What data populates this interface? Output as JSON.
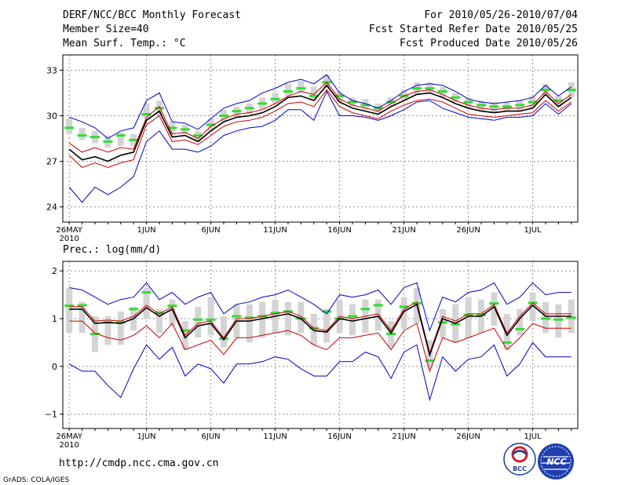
{
  "header": {
    "title": "DERF/NCC/BCC Monthly Forecast",
    "member_size": "Member Size=40",
    "variable": "Mean Surf. Temp.: °C",
    "forecast_period": "For 2010/05/26-2010/07/04",
    "started_date": "Fcst Started Refer Date 2010/05/25",
    "produced_date": "Fcst Produced Date 2010/05/26"
  },
  "footer": {
    "url": "http://cmdp.ncc.cma.gov.cn",
    "grads_credit": "GrADS: COLA/IGES",
    "logo_bcc_text": "BCC",
    "logo_ncc_text": "NCC"
  },
  "colors": {
    "envelope": "#0000cc",
    "spread": "#cc0000",
    "mean": "#000000",
    "box": "#d4d4d4",
    "median": "#33dd33",
    "grid": "#909090"
  },
  "chart_data": [
    {
      "type": "line",
      "name": "temperature",
      "title": "Mean Surf. Temp.: °C",
      "ylim": [
        23,
        34
      ],
      "yticks": [
        24,
        27,
        30,
        33
      ],
      "ytick_labels": [
        "24",
        "27",
        "30",
        "33"
      ],
      "x_ticks": [
        {
          "day": 1,
          "label": "26MAY",
          "sub": "2010"
        },
        {
          "day": 7,
          "label": "1JUN"
        },
        {
          "day": 12,
          "label": "6JUN"
        },
        {
          "day": 17,
          "label": "11JUN"
        },
        {
          "day": 22,
          "label": "16JUN"
        },
        {
          "day": 27,
          "label": "21JUN"
        },
        {
          "day": 32,
          "label": "26JUN"
        },
        {
          "day": 37,
          "label": "1JUL"
        }
      ],
      "days": [
        1,
        2,
        3,
        4,
        5,
        6,
        7,
        8,
        9,
        10,
        11,
        12,
        13,
        14,
        15,
        16,
        17,
        18,
        19,
        20,
        21,
        22,
        23,
        24,
        25,
        26,
        27,
        28,
        29,
        30,
        31,
        32,
        33,
        34,
        35,
        36,
        37,
        38,
        39,
        40
      ],
      "series": [
        {
          "name": "max",
          "role": "envelope",
          "values": [
            29.9,
            29.6,
            29.2,
            28.5,
            29.0,
            29.2,
            31.0,
            31.5,
            29.6,
            29.5,
            29.1,
            29.8,
            30.5,
            30.8,
            31.0,
            31.5,
            31.8,
            32.2,
            32.4,
            32.1,
            32.7,
            31.5,
            31.0,
            30.8,
            30.5,
            31.0,
            31.6,
            32.0,
            32.1,
            32.0,
            31.6,
            31.1,
            30.9,
            30.8,
            30.9,
            31.0,
            31.2,
            32.0,
            31.3,
            31.9
          ]
        },
        {
          "name": "plus_one_sd",
          "role": "spread",
          "values": [
            28.2,
            27.6,
            27.9,
            27.6,
            27.9,
            27.8,
            29.9,
            30.6,
            28.8,
            28.9,
            28.5,
            29.3,
            29.8,
            30.1,
            30.2,
            30.4,
            30.8,
            31.3,
            31.6,
            31.4,
            32.2,
            31.1,
            30.7,
            30.5,
            30.3,
            30.8,
            31.3,
            31.6,
            31.7,
            31.4,
            31.0,
            30.7,
            30.5,
            30.4,
            30.5,
            30.5,
            30.7,
            31.6,
            30.8,
            31.4
          ]
        },
        {
          "name": "mean",
          "role": "mean",
          "values": [
            27.8,
            27.1,
            27.3,
            27.0,
            27.4,
            27.6,
            29.7,
            30.3,
            28.6,
            28.7,
            28.3,
            29.0,
            29.6,
            29.9,
            30.0,
            30.2,
            30.6,
            31.2,
            31.3,
            31.0,
            32.0,
            30.9,
            30.5,
            30.3,
            30.1,
            30.6,
            31.0,
            31.4,
            31.5,
            31.2,
            30.8,
            30.5,
            30.3,
            30.2,
            30.3,
            30.3,
            30.5,
            31.4,
            30.6,
            31.2
          ]
        },
        {
          "name": "minus_one_sd",
          "role": "spread",
          "values": [
            27.4,
            26.6,
            26.9,
            26.6,
            26.9,
            27.1,
            29.4,
            30.0,
            28.3,
            28.4,
            28.1,
            28.7,
            29.3,
            29.6,
            29.7,
            29.9,
            30.3,
            30.8,
            30.9,
            30.6,
            31.7,
            30.6,
            30.2,
            30.0,
            29.8,
            30.3,
            30.7,
            31.0,
            31.1,
            30.9,
            30.5,
            30.1,
            30.0,
            29.9,
            30.0,
            30.1,
            30.2,
            31.0,
            30.3,
            30.9
          ]
        },
        {
          "name": "min",
          "role": "envelope",
          "values": [
            25.3,
            24.3,
            25.3,
            24.8,
            25.3,
            26.0,
            28.3,
            29.0,
            27.8,
            27.8,
            27.6,
            28.0,
            28.7,
            29.0,
            29.2,
            29.3,
            29.7,
            30.4,
            30.4,
            29.7,
            31.6,
            30.0,
            30.0,
            29.9,
            29.7,
            30.0,
            30.4,
            30.9,
            31.0,
            30.5,
            30.2,
            29.9,
            29.8,
            29.7,
            29.9,
            29.9,
            30.0,
            30.8,
            30.1,
            30.8
          ]
        }
      ],
      "boxes": [
        [
          28.8,
          29.8
        ],
        [
          28.4,
          29.2
        ],
        [
          28.2,
          29.0
        ],
        [
          27.9,
          28.7
        ],
        [
          28.0,
          28.9
        ],
        [
          28.0,
          28.8
        ],
        [
          29.8,
          30.8
        ],
        [
          30.0,
          31.0
        ],
        [
          28.8,
          29.6
        ],
        [
          28.8,
          29.4
        ],
        [
          28.3,
          29.0
        ],
        [
          29.0,
          29.8
        ],
        [
          29.6,
          30.4
        ],
        [
          29.9,
          30.6
        ],
        [
          30.1,
          30.8
        ],
        [
          30.4,
          31.2
        ],
        [
          30.8,
          31.5
        ],
        [
          31.3,
          32.1
        ],
        [
          31.5,
          32.3
        ],
        [
          31.0,
          31.9
        ],
        [
          31.8,
          32.7
        ],
        [
          30.9,
          31.6
        ],
        [
          30.6,
          31.2
        ],
        [
          30.4,
          31.1
        ],
        [
          30.2,
          30.8
        ],
        [
          30.6,
          31.2
        ],
        [
          31.0,
          31.7
        ],
        [
          31.4,
          32.2
        ],
        [
          31.5,
          32.2
        ],
        [
          31.2,
          31.9
        ],
        [
          30.9,
          31.5
        ],
        [
          30.5,
          31.2
        ],
        [
          30.3,
          31.0
        ],
        [
          30.2,
          30.9
        ],
        [
          30.3,
          30.9
        ],
        [
          30.3,
          31.0
        ],
        [
          30.5,
          31.3
        ],
        [
          31.3,
          32.1
        ],
        [
          30.6,
          31.3
        ],
        [
          31.2,
          32.2
        ]
      ],
      "medians": [
        29.2,
        28.7,
        28.6,
        28.3,
        28.7,
        28.4,
        30.1,
        30.5,
        29.2,
        29.1,
        28.7,
        29.4,
        30.0,
        30.3,
        30.5,
        30.8,
        31.1,
        31.6,
        31.8,
        31.3,
        32.2,
        31.3,
        30.9,
        30.7,
        30.5,
        30.9,
        31.3,
        31.8,
        31.8,
        31.6,
        31.2,
        30.9,
        30.7,
        30.6,
        30.6,
        30.7,
        30.9,
        31.7,
        31.0,
        31.7
      ]
    },
    {
      "type": "line",
      "name": "precipitation",
      "title": "Prec.: log(mm/d)",
      "ylim": [
        -1.3,
        2.2
      ],
      "yticks": [
        -1,
        0,
        1,
        2
      ],
      "ytick_labels": [
        "−1",
        "0",
        "1",
        "2"
      ],
      "x_ticks": [
        {
          "day": 1,
          "label": "26MAY",
          "sub": "2010"
        },
        {
          "day": 7,
          "label": "1JUN"
        },
        {
          "day": 12,
          "label": "6JUN"
        },
        {
          "day": 17,
          "label": "11JUN"
        },
        {
          "day": 22,
          "label": "16JUN"
        },
        {
          "day": 27,
          "label": "21JUN"
        },
        {
          "day": 32,
          "label": "26JUN"
        },
        {
          "day": 37,
          "label": "1JUL"
        }
      ],
      "days": [
        1,
        2,
        3,
        4,
        5,
        6,
        7,
        8,
        9,
        10,
        11,
        12,
        13,
        14,
        15,
        16,
        17,
        18,
        19,
        20,
        21,
        22,
        23,
        24,
        25,
        26,
        27,
        28,
        29,
        30,
        31,
        32,
        33,
        34,
        35,
        36,
        37,
        38,
        39,
        40
      ],
      "series": [
        {
          "name": "max",
          "role": "envelope",
          "values": [
            1.65,
            1.6,
            1.45,
            1.3,
            1.4,
            1.45,
            1.75,
            1.4,
            1.55,
            1.3,
            1.45,
            1.55,
            1.1,
            1.3,
            1.35,
            1.45,
            1.5,
            1.6,
            1.45,
            1.3,
            1.1,
            1.5,
            1.45,
            1.5,
            1.6,
            1.3,
            1.65,
            1.75,
            0.75,
            1.45,
            1.35,
            1.55,
            1.6,
            1.75,
            1.3,
            1.45,
            1.75,
            1.5,
            1.55,
            1.55
          ]
        },
        {
          "name": "plus_one_sd",
          "role": "spread",
          "values": [
            1.25,
            1.25,
            0.95,
            0.97,
            0.95,
            1.05,
            1.28,
            1.1,
            1.25,
            0.65,
            0.9,
            0.95,
            0.6,
            1.0,
            1.0,
            1.05,
            1.1,
            1.15,
            1.05,
            0.8,
            0.75,
            1.05,
            1.0,
            1.05,
            1.1,
            0.75,
            1.2,
            1.35,
            0.28,
            1.05,
            0.95,
            1.1,
            1.1,
            1.3,
            0.7,
            1.05,
            1.33,
            1.1,
            1.1,
            1.1
          ]
        },
        {
          "name": "mean",
          "role": "mean",
          "values": [
            1.2,
            1.2,
            0.9,
            0.92,
            0.9,
            1.0,
            1.23,
            1.05,
            1.2,
            0.6,
            0.85,
            0.9,
            0.56,
            0.95,
            0.95,
            1.0,
            1.05,
            1.1,
            1.0,
            0.75,
            0.72,
            1.0,
            0.95,
            1.0,
            1.05,
            0.7,
            1.15,
            1.3,
            0.24,
            1.0,
            0.9,
            1.05,
            1.05,
            1.25,
            0.65,
            1.0,
            1.28,
            1.05,
            1.05,
            1.05
          ]
        },
        {
          "name": "minus_one_sd",
          "role": "spread",
          "values": [
            0.95,
            0.95,
            0.7,
            0.6,
            0.55,
            0.65,
            0.85,
            0.6,
            0.9,
            0.35,
            0.45,
            0.55,
            0.25,
            0.6,
            0.6,
            0.65,
            0.7,
            0.75,
            0.65,
            0.45,
            0.35,
            0.6,
            0.6,
            0.65,
            0.7,
            0.35,
            0.75,
            0.9,
            -0.1,
            0.6,
            0.5,
            0.6,
            0.7,
            0.8,
            0.35,
            0.6,
            0.9,
            0.8,
            0.8,
            0.8
          ]
        },
        {
          "name": "min",
          "role": "envelope",
          "values": [
            0.05,
            -0.1,
            -0.1,
            -0.4,
            -0.65,
            -0.05,
            0.45,
            0.15,
            0.4,
            -0.2,
            0.05,
            -0.05,
            -0.35,
            0.05,
            0.05,
            0.1,
            0.2,
            0.15,
            -0.05,
            -0.2,
            -0.2,
            0.1,
            0.1,
            0.3,
            0.2,
            -0.25,
            0.3,
            0.45,
            -0.7,
            0.2,
            -0.1,
            0.15,
            0.2,
            0.45,
            -0.2,
            0.05,
            0.5,
            0.2,
            0.2,
            0.2
          ]
        }
      ],
      "boxes": [
        [
          0.7,
          1.65
        ],
        [
          0.7,
          1.35
        ],
        [
          0.3,
          1.05
        ],
        [
          0.45,
          1.05
        ],
        [
          0.45,
          1.15
        ],
        [
          0.75,
          1.25
        ],
        [
          1.0,
          1.65
        ],
        [
          0.7,
          1.2
        ],
        [
          0.85,
          1.4
        ],
        [
          0.35,
          0.95
        ],
        [
          0.6,
          1.25
        ],
        [
          0.65,
          1.45
        ],
        [
          0.4,
          1.05
        ],
        [
          0.6,
          1.3
        ],
        [
          0.5,
          1.3
        ],
        [
          0.6,
          1.35
        ],
        [
          0.7,
          1.4
        ],
        [
          0.65,
          1.35
        ],
        [
          0.7,
          1.35
        ],
        [
          0.45,
          1.1
        ],
        [
          0.5,
          1.2
        ],
        [
          0.7,
          1.4
        ],
        [
          0.65,
          1.3
        ],
        [
          0.7,
          1.4
        ],
        [
          0.75,
          1.4
        ],
        [
          0.4,
          0.95
        ],
        [
          0.8,
          1.45
        ],
        [
          0.9,
          1.65
        ],
        [
          -0.05,
          0.55
        ],
        [
          0.6,
          1.2
        ],
        [
          0.5,
          1.3
        ],
        [
          0.6,
          1.45
        ],
        [
          0.7,
          1.4
        ],
        [
          0.85,
          1.55
        ],
        [
          0.35,
          1.1
        ],
        [
          0.65,
          1.2
        ],
        [
          0.95,
          1.55
        ],
        [
          0.7,
          1.35
        ],
        [
          0.6,
          1.3
        ],
        [
          0.7,
          1.4
        ]
      ],
      "medians": [
        1.27,
        1.28,
        0.68,
        0.92,
        0.92,
        1.2,
        1.55,
        1.12,
        1.27,
        0.75,
        0.98,
        0.98,
        0.58,
        1.05,
        1.02,
        1.05,
        1.12,
        1.15,
        1.0,
        0.8,
        1.15,
        1.0,
        1.05,
        1.2,
        1.28,
        0.68,
        1.25,
        1.32,
        0.12,
        0.92,
        0.88,
        1.08,
        1.08,
        1.32,
        0.5,
        0.78,
        1.33,
        1.0,
        0.98,
        1.02
      ]
    }
  ]
}
